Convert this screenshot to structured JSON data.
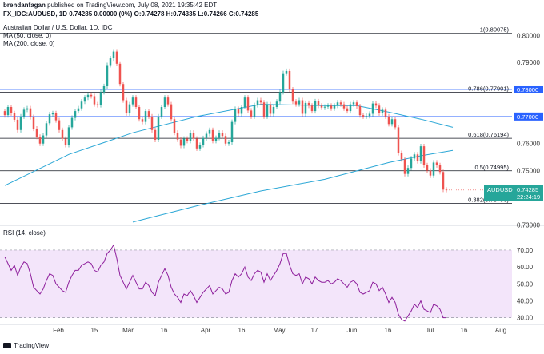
{
  "header": {
    "publisher": "brendanfagan",
    "published_text": "published on TradingView.com, July 08, 2021 19:35:42 EDT",
    "symbol_line": "FX_IDC:AUDUSD, 1D 0.74285 0.00000 (0%) O:0.74278 H:0.74335 L:0.74266 C:0.74285",
    "title_line": "Australian Dollar / U.S. Dollar, 1D, IDC",
    "ma50_label": "MA (50, close, 0)",
    "ma200_label": "MA (200, close, 0)"
  },
  "rsi_label": "RSI (14, close)",
  "footer_text": "TradingView",
  "colors": {
    "up": "#26a69a",
    "down": "#ef5350",
    "ma": "#2ba7d6",
    "rsi": "#8e1f9c",
    "rsi_band": "#f3e5fa",
    "hline": "#2962ff",
    "black": "#131722"
  },
  "chart_data": [
    {
      "type": "candlestick",
      "title": "Australian Dollar / U.S. Dollar, 1D, IDC",
      "y_ticks": [
        "0.80000",
        "0.79000",
        "0.78000",
        "0.77000",
        "0.76000",
        "0.75000",
        "0.74000",
        "0.73000"
      ],
      "ylim": [
        0.7298,
        0.8048
      ],
      "x_tick_labels": [
        "Feb",
        "15",
        "Mar",
        "16",
        "Apr",
        "16",
        "May",
        "17",
        "Jun",
        "16",
        "Jul",
        "16",
        "Aug"
      ],
      "last_price": "0.74285",
      "countdown": "22:24:19",
      "price_marks": [
        "0.78000",
        "0.77000"
      ],
      "fib_levels": [
        {
          "label": "1(0.80075)",
          "value": 0.80075
        },
        {
          "label": "0.786(0.77901)",
          "value": 0.77901
        },
        {
          "label": "0.618(0.76194)",
          "value": 0.76194
        },
        {
          "label": "0.5(0.74995)",
          "value": 0.74995
        },
        {
          "label": "0.382(0.73796)",
          "value": 0.73796
        }
      ],
      "closes": [
        0.7705,
        0.7735,
        0.7712,
        0.7688,
        0.765,
        0.77,
        0.7725,
        0.773,
        0.7698,
        0.7655,
        0.7625,
        0.76,
        0.763,
        0.7675,
        0.7708,
        0.7712,
        0.7686,
        0.765,
        0.7618,
        0.7595,
        0.766,
        0.7695,
        0.772,
        0.773,
        0.7755,
        0.777,
        0.778,
        0.7775,
        0.7745,
        0.7742,
        0.779,
        0.7812,
        0.789,
        0.7915,
        0.794,
        0.7895,
        0.782,
        0.776,
        0.7712,
        0.7745,
        0.777,
        0.7735,
        0.769,
        0.768,
        0.772,
        0.77,
        0.765,
        0.7614,
        0.77,
        0.7735,
        0.777,
        0.7745,
        0.769,
        0.764,
        0.7615,
        0.7592,
        0.7618,
        0.761,
        0.764,
        0.7618,
        0.7582,
        0.7595,
        0.762,
        0.7636,
        0.765,
        0.761,
        0.7621,
        0.764,
        0.7628,
        0.76,
        0.7605,
        0.768,
        0.7728,
        0.771,
        0.7735,
        0.777,
        0.7722,
        0.77,
        0.7742,
        0.776,
        0.7752,
        0.77,
        0.7745,
        0.771,
        0.7735,
        0.7755,
        0.779,
        0.786,
        0.7868,
        0.78,
        0.7755,
        0.7745,
        0.776,
        0.771,
        0.775,
        0.774,
        0.772,
        0.7756,
        0.774,
        0.7733,
        0.7736,
        0.774,
        0.773,
        0.774,
        0.7752,
        0.7745,
        0.773,
        0.772,
        0.7745,
        0.7752,
        0.7738,
        0.7705,
        0.77,
        0.7702,
        0.771,
        0.7748,
        0.774,
        0.7712,
        0.7725,
        0.77,
        0.7672,
        0.769,
        0.766,
        0.7565,
        0.7542,
        0.7488,
        0.751,
        0.7545,
        0.756,
        0.7535,
        0.759,
        0.752,
        0.75,
        0.7482,
        0.753,
        0.752,
        0.7495,
        0.743,
        0.7429
      ],
      "ma50": [
        [
          0,
          0.7445
        ],
        [
          20,
          0.756
        ],
        [
          40,
          0.764
        ],
        [
          60,
          0.77
        ],
        [
          80,
          0.7745
        ],
        [
          100,
          0.774
        ],
        [
          110,
          0.774
        ],
        [
          120,
          0.7716
        ],
        [
          130,
          0.769
        ],
        [
          140,
          0.766
        ]
      ],
      "ma200": [
        [
          40,
          0.731
        ],
        [
          60,
          0.737
        ],
        [
          80,
          0.7425
        ],
        [
          100,
          0.7468
        ],
        [
          120,
          0.753
        ],
        [
          130,
          0.7555
        ],
        [
          140,
          0.7575
        ]
      ]
    },
    {
      "type": "line",
      "title": "RSI (14, close)",
      "y_ticks": [
        "70.00",
        "60.00",
        "50.00",
        "40.00",
        "30.00"
      ],
      "ylim": [
        27,
        78
      ],
      "band": [
        30,
        70
      ],
      "values": [
        66,
        62,
        58,
        61,
        55,
        60,
        63,
        62,
        56,
        48,
        46,
        44,
        47,
        52,
        56,
        55,
        50,
        48,
        46,
        45,
        51,
        55,
        58,
        58,
        61,
        62,
        63,
        62,
        58,
        57,
        61,
        63,
        68,
        70,
        73,
        65,
        55,
        51,
        47,
        51,
        55,
        51,
        47,
        47,
        51,
        49,
        45,
        43,
        51,
        55,
        59,
        55,
        48,
        44,
        42,
        39,
        44,
        43,
        46,
        43,
        39,
        42,
        45,
        47,
        49,
        44,
        46,
        48,
        47,
        44,
        45,
        52,
        56,
        54,
        56,
        60,
        54,
        52,
        56,
        58,
        57,
        51,
        56,
        52,
        55,
        58,
        62,
        68,
        68,
        61,
        56,
        55,
        56,
        50,
        54,
        53,
        50,
        54,
        52,
        51,
        51,
        52,
        50,
        51,
        53,
        52,
        50,
        48,
        51,
        52,
        50,
        45,
        44,
        45,
        46,
        51,
        50,
        46,
        48,
        44,
        39,
        42,
        39,
        32,
        29,
        28,
        31,
        34,
        38,
        36,
        40,
        35,
        34,
        33,
        38,
        37,
        35,
        30,
        30
      ]
    }
  ]
}
